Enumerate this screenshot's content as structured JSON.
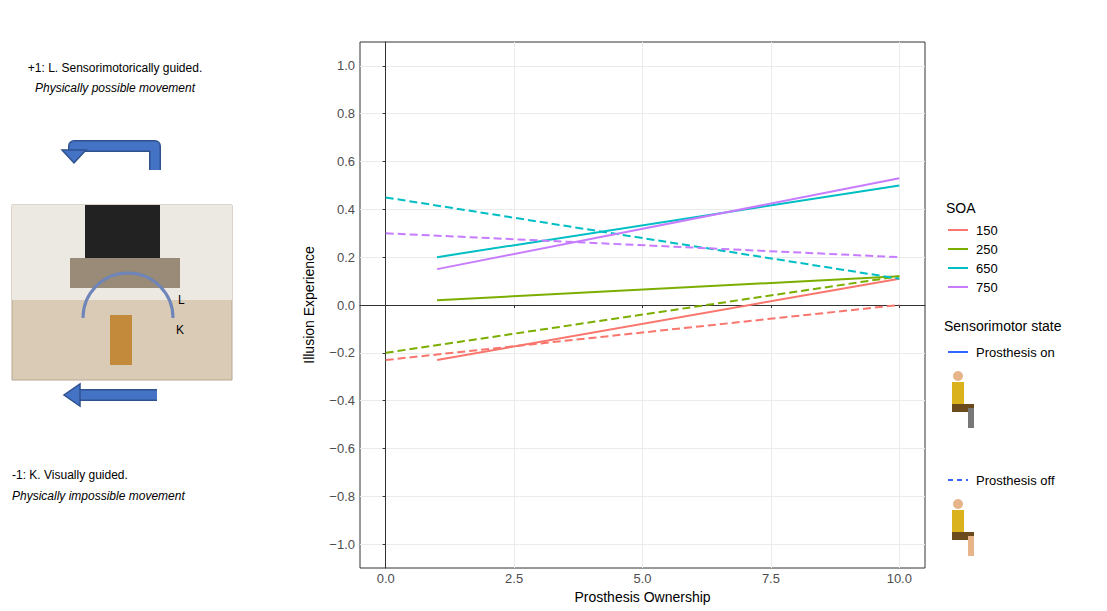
{
  "chart_data": {
    "type": "line",
    "x_label": "Prosthesis Ownership",
    "y_label": "Illusion Experience",
    "xlim": [
      -0.5,
      10.5
    ],
    "xticks": [
      {
        "value": 0,
        "label": "0.0"
      },
      {
        "value": 2.5,
        "label": "2.5"
      },
      {
        "value": 5,
        "label": "5.0"
      },
      {
        "value": 7.5,
        "label": "7.5"
      },
      {
        "value": 10,
        "label": "10.0"
      }
    ],
    "ylim": [
      -1.1,
      1.1
    ],
    "yticks": [
      {
        "value": -1,
        "label": "−1.0"
      },
      {
        "value": -0.8,
        "label": "−0.8"
      },
      {
        "value": -0.6,
        "label": "−0.6"
      },
      {
        "value": -0.4,
        "label": "−0.4"
      },
      {
        "value": -0.2,
        "label": "−0.2"
      },
      {
        "value": 0,
        "label": "0.0"
      },
      {
        "value": 0.2,
        "label": "0.2"
      },
      {
        "value": 0.4,
        "label": "0.4"
      },
      {
        "value": 0.6,
        "label": "0.6"
      },
      {
        "value": 0.8,
        "label": "0.8"
      },
      {
        "value": 1,
        "label": "1.0"
      }
    ],
    "grid": true,
    "legend": "right",
    "color_legend": {
      "title": "SOA",
      "entries": [
        "150",
        "250",
        "650",
        "750"
      ]
    },
    "style_legend": {
      "title": "Sensorimotor state",
      "entries": [
        {
          "name": "Prosthesis on",
          "line_style": "solid",
          "color": "#3366ff"
        },
        {
          "name": "Prosthesis off",
          "line_style": "dashed",
          "color": "#3366ff"
        }
      ]
    },
    "series": [
      {
        "name": "150",
        "state": "Prosthesis on",
        "color": "#f8766d",
        "x": [
          1,
          10
        ],
        "values": [
          -0.23,
          0.11
        ]
      },
      {
        "name": "150",
        "state": "Prosthesis off",
        "color": "#f8766d",
        "x": [
          0,
          10
        ],
        "values": [
          -0.23,
          0.0
        ]
      },
      {
        "name": "250",
        "state": "Prosthesis on",
        "color": "#7cae00",
        "x": [
          1,
          10
        ],
        "values": [
          0.02,
          0.12
        ]
      },
      {
        "name": "250",
        "state": "Prosthesis off",
        "color": "#7cae00",
        "x": [
          0,
          10
        ],
        "values": [
          -0.2,
          0.12
        ]
      },
      {
        "name": "650",
        "state": "Prosthesis on",
        "color": "#00bfc4",
        "x": [
          1,
          10
        ],
        "values": [
          0.2,
          0.5
        ]
      },
      {
        "name": "650",
        "state": "Prosthesis off",
        "color": "#00bfc4",
        "x": [
          0,
          10
        ],
        "values": [
          0.45,
          0.11
        ]
      },
      {
        "name": "750",
        "state": "Prosthesis on",
        "color": "#c77cff",
        "x": [
          1,
          10
        ],
        "values": [
          0.15,
          0.53
        ]
      },
      {
        "name": "750",
        "state": "Prosthesis off",
        "color": "#c77cff",
        "x": [
          0,
          10
        ],
        "values": [
          0.3,
          0.2
        ]
      }
    ],
    "panel": {
      "top_text": "+1: L. Sensorimotorically guided.",
      "top_subtext": "Physically possible movement",
      "bottom_text": "-1: K. Visually guided.",
      "bottom_subtext": "Physically impossible movement",
      "photo_labels": [
        "L",
        "K"
      ]
    }
  }
}
